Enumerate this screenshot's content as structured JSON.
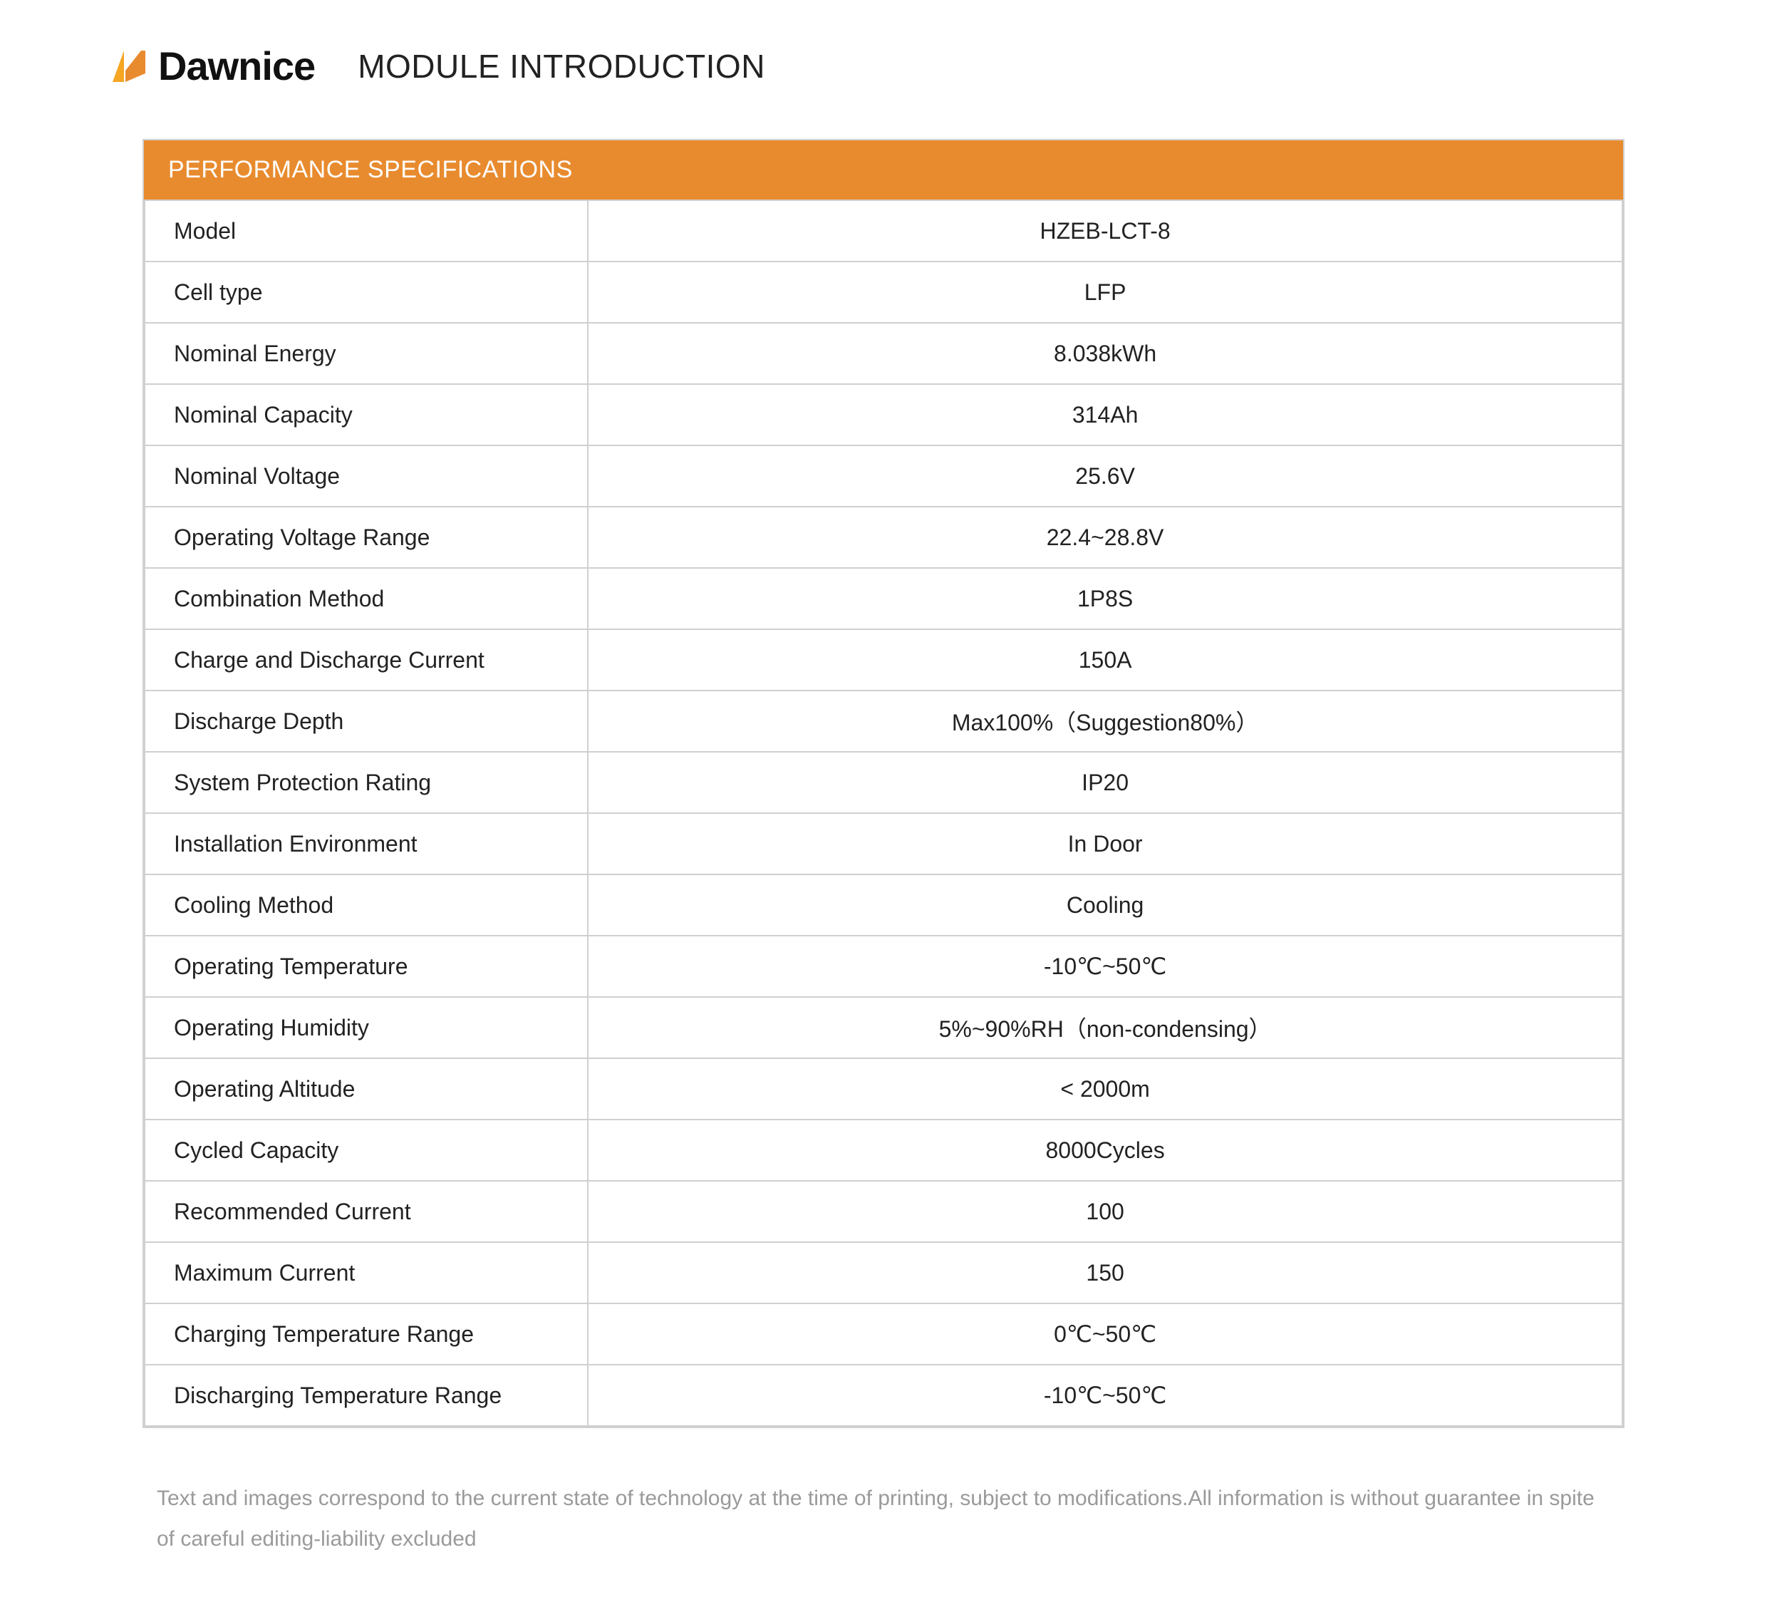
{
  "brand": {
    "name": "Dawnice",
    "logo_colors": {
      "left": "#f5a623",
      "right": "#e88b2e"
    }
  },
  "page": {
    "title": "MODULE INTRODUCTION"
  },
  "spec": {
    "header": "PERFORMANCE SPECIFICATIONS",
    "header_bg": "#e88b2e",
    "header_color": "#ffffff",
    "border_color": "#d0d0d0",
    "label_fontsize": 32,
    "value_fontsize": 32,
    "rows": [
      {
        "label": "Model",
        "value": "HZEB-LCT-8"
      },
      {
        "label": "Cell type",
        "value": "LFP"
      },
      {
        "label": "Nominal Energy",
        "value": "8.038kWh"
      },
      {
        "label": "Nominal Capacity",
        "value": "314Ah"
      },
      {
        "label": "Nominal Voltage",
        "value": "25.6V"
      },
      {
        "label": "Operating Voltage Range",
        "value": "22.4~28.8V"
      },
      {
        "label": "Combination Method",
        "value": "1P8S"
      },
      {
        "label": "Charge and Discharge Current",
        "value": "150A"
      },
      {
        "label": "Discharge Depth",
        "value": "Max100%（Suggestion80%）"
      },
      {
        "label": "System Protection Rating",
        "value": "IP20"
      },
      {
        "label": "Installation Environment",
        "value": "In Door"
      },
      {
        "label": "Cooling Method",
        "value": "Cooling"
      },
      {
        "label": "Operating Temperature",
        "value": "-10℃~50℃"
      },
      {
        "label": "Operating Humidity",
        "value": "5%~90%RH（non-condensing）"
      },
      {
        "label": "Operating Altitude",
        "value": "< 2000m"
      },
      {
        "label": "Cycled Capacity",
        "value": "8000Cycles"
      },
      {
        "label": "Recommended Current",
        "value": "100"
      },
      {
        "label": "Maximum Current",
        "value": "150"
      },
      {
        "label": "Charging Temperature Range",
        "value": "0℃~50℃"
      },
      {
        "label": "Discharging Temperature Range",
        "value": "-10℃~50℃"
      }
    ]
  },
  "footnote": "Text and images correspond to the current state of technology at the time of printing, subject to modifications.All information is without guarantee in spite of careful editing-liability excluded"
}
